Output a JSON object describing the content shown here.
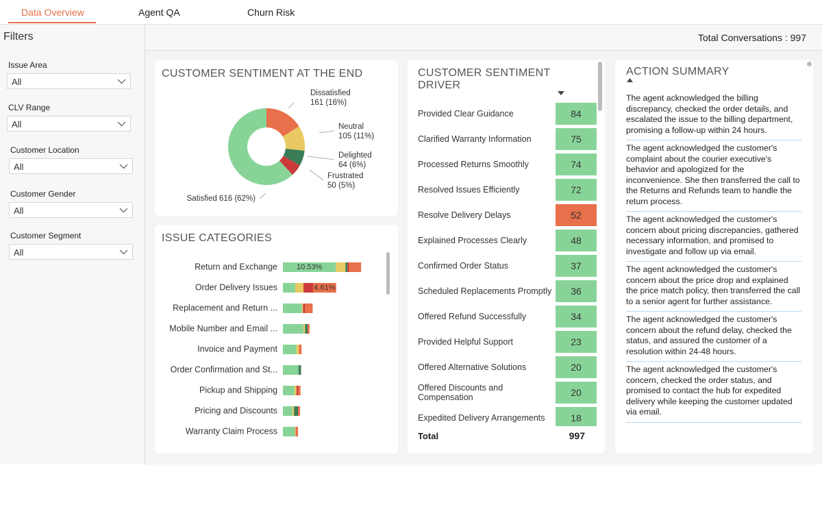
{
  "tabs": [
    "Data Overview",
    "Agent QA",
    "Churn Risk"
  ],
  "filters": {
    "title": "Filters",
    "items": [
      {
        "label": "Issue Area",
        "value": "All"
      },
      {
        "label": "CLV Range",
        "value": "All"
      },
      {
        "label": "Customer Location",
        "value": "All"
      },
      {
        "label": "Customer Gender",
        "value": "All"
      },
      {
        "label": "Customer Segment",
        "value": "All"
      }
    ]
  },
  "total_conversations": {
    "label": "Total Conversations :",
    "value": 997
  },
  "sentiment": {
    "title": "CUSTOMER SENTIMENT AT THE END",
    "segments": [
      {
        "name": "Dissatisfied",
        "value": 161,
        "value_label": "161 (16%)",
        "color": "#e8704a"
      },
      {
        "name": "Neutral",
        "value": 105,
        "value_label": "105 (11%)",
        "color": "#e9c962"
      },
      {
        "name": "Delighted",
        "value": 64,
        "value_label": "64 (6%)",
        "color": "#3b7d57"
      },
      {
        "name": "Frustrated",
        "value": 50,
        "value_label": "50 (5%)",
        "color": "#cc3b3b"
      },
      {
        "name": "Satisfied",
        "value": 616,
        "value_label": "616 (62%)",
        "color": "#88d498"
      }
    ]
  },
  "issue_categories": {
    "title": "ISSUE CATEGORIES",
    "categories": [
      "Return and Exchange",
      "Order Delivery Issues",
      "Replacement and Return ...",
      "Mobile Number and Email ...",
      "Invoice and Payment",
      "Order Confirmation and St...",
      "Pickup and Shipping",
      "Pricing and Discounts",
      "Warranty Claim Process"
    ],
    "series": [
      {
        "color": "#88d498",
        "values": [
          10.53,
          2.45,
          3.8,
          4.1,
          2.7,
          3.1,
          2.3,
          1.9,
          2.4
        ],
        "value_labels": [
          "10.53%",
          null,
          null,
          null,
          null,
          null,
          null,
          null,
          null
        ]
      },
      {
        "color": "#e9c962",
        "values": [
          1.9,
          1.63,
          0.2,
          0.3,
          0.5,
          0,
          0.4,
          0.3,
          0.1
        ]
      },
      {
        "color": "#3b7d57",
        "values": [
          0.4,
          0,
          0,
          0.5,
          0,
          0.5,
          0,
          0.8,
          0
        ]
      },
      {
        "color": "#cc3b3b",
        "values": [
          0.3,
          1.9,
          0.4,
          0,
          0,
          0,
          0.3,
          0,
          0
        ]
      },
      {
        "color": "#e8704a",
        "values": [
          2.4,
          4.61,
          1.5,
          0.4,
          0.5,
          0,
          0.5,
          0.4,
          0.5
        ],
        "value_labels": [
          null,
          "4.61%",
          null,
          null,
          null,
          null,
          null,
          null,
          null
        ]
      }
    ]
  },
  "driver": {
    "title": "CUSTOMER SENTIMENT DRIVER",
    "rows": [
      {
        "label": "Provided Clear Guidance",
        "value": 84,
        "color": "#88d498"
      },
      {
        "label": "Clarified Warranty Information",
        "value": 75,
        "color": "#88d498"
      },
      {
        "label": "Processed Returns Smoothly",
        "value": 74,
        "color": "#88d498"
      },
      {
        "label": "Resolved Issues Efficiently",
        "value": 72,
        "color": "#88d498"
      },
      {
        "label": "Resolve Delivery Delays",
        "value": 52,
        "color": "#e8704a"
      },
      {
        "label": "Explained Processes Clearly",
        "value": 48,
        "color": "#88d498"
      },
      {
        "label": "Confirmed Order Status",
        "value": 37,
        "color": "#88d498"
      },
      {
        "label": "Scheduled Replacements Promptly",
        "value": 36,
        "color": "#88d498"
      },
      {
        "label": "Offered Refund Successfully",
        "value": 34,
        "color": "#88d498"
      },
      {
        "label": "Provided Helpful Support",
        "value": 23,
        "color": "#88d498"
      },
      {
        "label": "Offered Alternative Solutions",
        "value": 20,
        "color": "#88d498"
      },
      {
        "label": "Offered Discounts and Compensation",
        "value": 20,
        "color": "#88d498"
      },
      {
        "label": "Expedited Delivery Arrangements",
        "value": 18,
        "color": "#88d498"
      }
    ],
    "total": {
      "label": "Total",
      "value": 997
    }
  },
  "action_summary": {
    "title": "ACTION SUMMARY",
    "items": [
      "The agent acknowledged the billing discrepancy, checked the order details, and escalated the issue to the billing department, promising a follow-up within 24 hours.",
      "The agent acknowledged the customer's complaint about the courier executive's behavior and apologized for the inconvenience. She then transferred the call to the Returns and Refunds team to handle the return process.",
      "The agent acknowledged the customer's concern about pricing discrepancies, gathered necessary information, and promised to investigate and follow up via email.",
      "The agent acknowledged the customer's concern about the price drop and explained the price match policy, then transferred the call to a senior agent for further assistance.",
      "The agent acknowledged the customer's concern about the refund delay, checked the status, and assured the customer of a resolution within 24-48 hours.",
      "The agent acknowledged the customer's concern, checked the order status, and promised to contact the hub for expedited delivery while keeping the customer updated via email."
    ]
  }
}
